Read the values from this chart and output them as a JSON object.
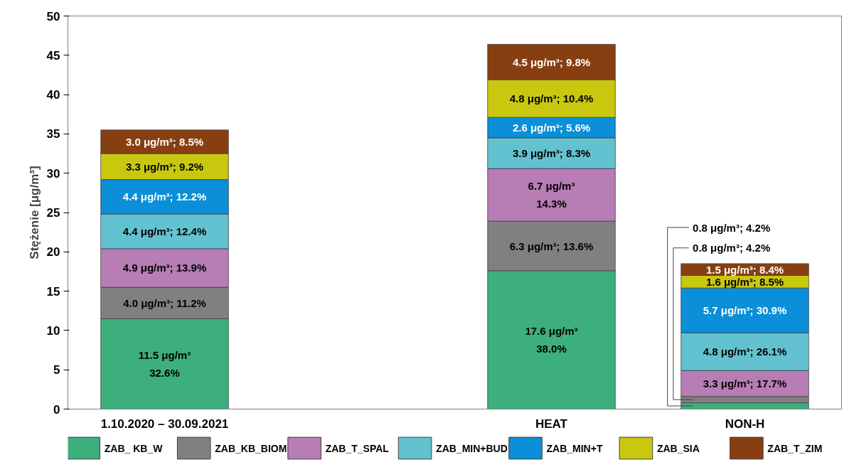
{
  "chart_data": {
    "type": "bar",
    "stacked": true,
    "ylabel": "Stężenie [μg/m³]",
    "categories": [
      "1.10.2020 – 30.09.2021",
      null,
      "HEAT",
      "NON-H"
    ],
    "ylim": [
      0,
      50
    ],
    "yticks": [
      0,
      5,
      10,
      15,
      20,
      25,
      30,
      35,
      40,
      45,
      50
    ],
    "grid": false,
    "legend": "bottom",
    "series": [
      {
        "name": "ZAB_ KB_W",
        "color": "#3daf7c",
        "values": [
          11.5,
          null,
          17.6,
          0.8
        ],
        "value_labels": [
          "11.5 μg/m³\n32.6%",
          null,
          "17.6 μg/m³\n38.0%",
          "0.8 μg/m³; 4.2%"
        ]
      },
      {
        "name": "ZAB_KB_BIOM",
        "color": "#808080",
        "values": [
          4.0,
          null,
          6.3,
          0.8
        ],
        "value_labels": [
          "4.0 μg/m³; 11.2%",
          null,
          "6.3 μg/m³; 13.6%",
          "0.8 μg/m³; 4.2%"
        ]
      },
      {
        "name": "ZAB_T_SPAL",
        "color": "#b77db5",
        "values": [
          4.9,
          null,
          6.7,
          3.3
        ],
        "value_labels": [
          "4.9 μg/m³; 13.9%",
          null,
          "6.7 μg/m³\n14.3%",
          "3.3 μg/m³; 17.7%"
        ]
      },
      {
        "name": "ZAB_MIN+BUD",
        "color": "#62c2d0",
        "values": [
          4.4,
          null,
          3.9,
          4.8
        ],
        "value_labels": [
          "4.4 μg/m³; 12.4%",
          null,
          "3.9 μg/m³; 8.3%",
          "4.8 μg/m³; 26.1%"
        ]
      },
      {
        "name": "ZAB_MIN+T",
        "color": "#0a8fd8",
        "values": [
          4.4,
          null,
          2.6,
          5.7
        ],
        "value_labels": [
          "4.4 μg/m³; 12.2%",
          null,
          "2.6 μg/m³; 5.6%",
          "5.7 μg/m³; 30.9%"
        ]
      },
      {
        "name": "ZAB_SIA",
        "color": "#c9c80e",
        "values": [
          3.3,
          null,
          4.8,
          1.6
        ],
        "value_labels": [
          "3.3 μg/m³; 9.2%",
          null,
          "4.8 μg/m³; 10.4%",
          "1.6 μg/m³; 8.5%"
        ]
      },
      {
        "name": "ZAB_T_ZIM",
        "color": "#873f12",
        "values": [
          3.0,
          null,
          4.5,
          1.5
        ],
        "value_labels": [
          "3.0 μg/m³; 8.5%",
          null,
          "4.5 μg/m³; 9.8%",
          "1.5 μg/m³; 8.4%"
        ]
      }
    ]
  }
}
